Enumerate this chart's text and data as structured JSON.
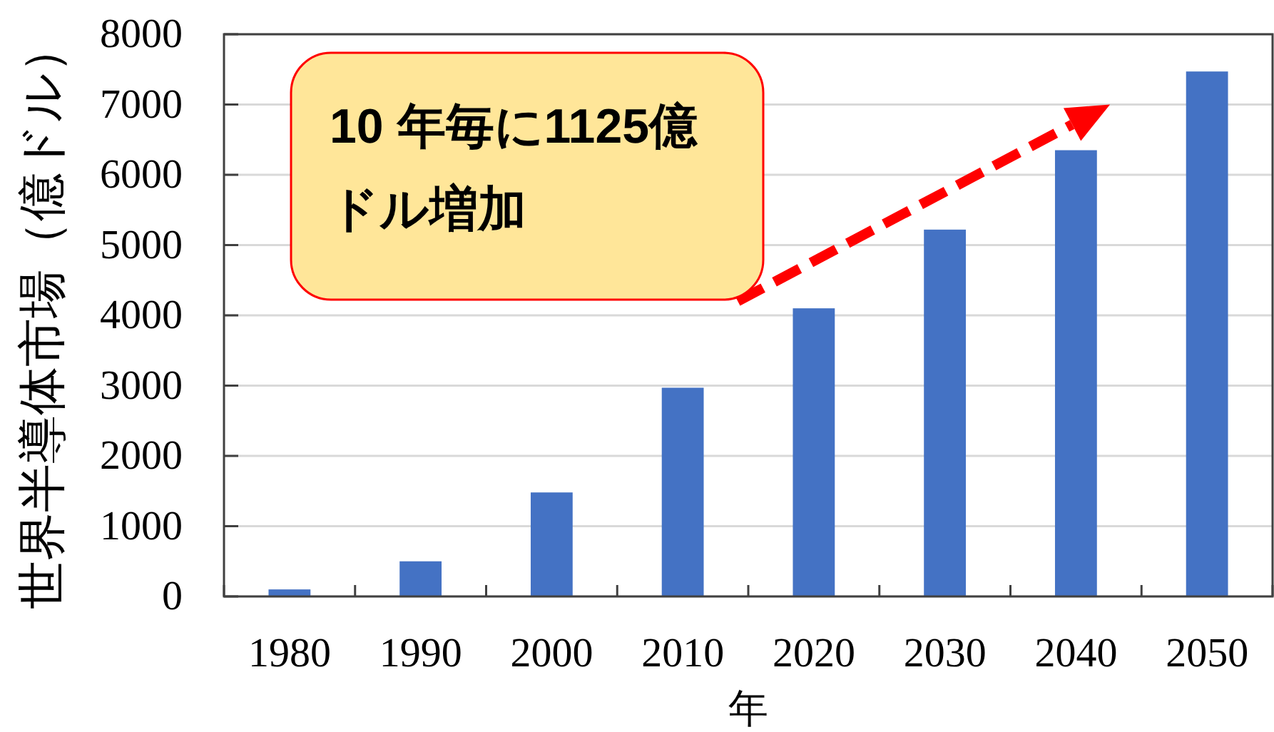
{
  "chart_data": {
    "type": "bar",
    "categories": [
      "1980",
      "1990",
      "2000",
      "2010",
      "2020",
      "2030",
      "2040",
      "2050"
    ],
    "values": [
      100,
      500,
      1480,
      2970,
      4100,
      5220,
      6350,
      7470
    ],
    "color": "#4472c4",
    "xlabel": "年",
    "ylabel": "世界半導体市場（億ドル）",
    "ylim": [
      0,
      8000
    ],
    "yticks": [
      0,
      1000,
      2000,
      3000,
      4000,
      5000,
      6000,
      7000,
      8000
    ],
    "grid": "y",
    "annotations": [
      "10 年毎に1125億ドル増加"
    ]
  }
}
